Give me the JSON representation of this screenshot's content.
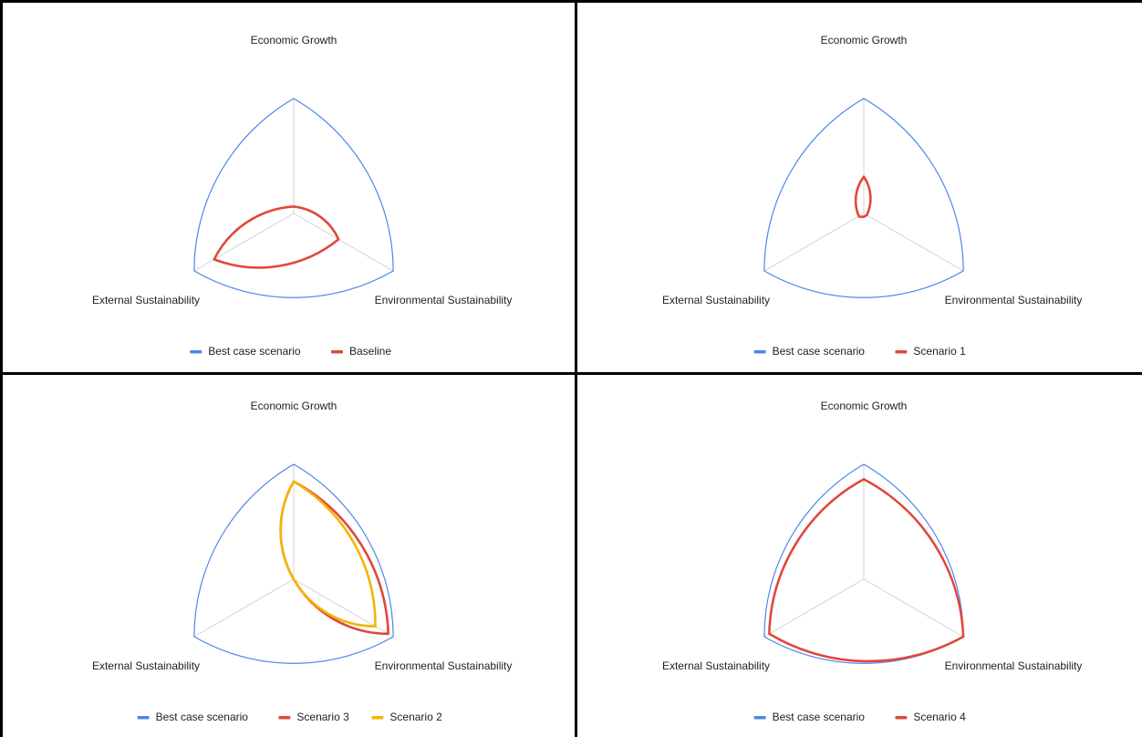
{
  "charts": [
    {
      "type": "radar",
      "axes": [
        "Economic Growth",
        "Environmental Sustainability",
        "External Sustainability"
      ],
      "rmax": 1,
      "series": [
        {
          "name": "Best case scenario",
          "values": [
            1,
            1,
            1
          ],
          "color": "#4a86e8"
        },
        {
          "name": "Baseline",
          "values": [
            0.06,
            0.45,
            0.8
          ],
          "color": "#e0483a"
        }
      ]
    },
    {
      "type": "radar",
      "axes": [
        "Economic Growth",
        "Environmental Sustainability",
        "External Sustainability"
      ],
      "rmax": 1,
      "series": [
        {
          "name": "Best case scenario",
          "values": [
            1,
            1,
            1
          ],
          "color": "#4a86e8"
        },
        {
          "name": "Scenario 1",
          "values": [
            0.32,
            0.03,
            0.05
          ],
          "color": "#e0483a"
        }
      ]
    },
    {
      "type": "radar",
      "axes": [
        "Economic Growth",
        "Environmental Sustainability",
        "External Sustainability"
      ],
      "rmax": 1,
      "series": [
        {
          "name": "Best case scenario",
          "values": [
            1,
            1,
            1
          ],
          "color": "#4a86e8"
        },
        {
          "name": "Scenario 3",
          "values": [
            0.85,
            0.95,
            0.0
          ],
          "color": "#e0483a"
        },
        {
          "name": "Scenario 2",
          "values": [
            0.85,
            0.82,
            0.0
          ],
          "color": "#f2b600"
        }
      ]
    },
    {
      "type": "radar",
      "axes": [
        "Economic Growth",
        "Environmental Sustainability",
        "External Sustainability"
      ],
      "rmax": 1,
      "series": [
        {
          "name": "Best case scenario",
          "values": [
            1,
            1,
            1
          ],
          "color": "#4a86e8"
        },
        {
          "name": "Scenario 4",
          "values": [
            0.87,
            1.0,
            0.95
          ],
          "color": "#e0483a"
        }
      ]
    }
  ]
}
